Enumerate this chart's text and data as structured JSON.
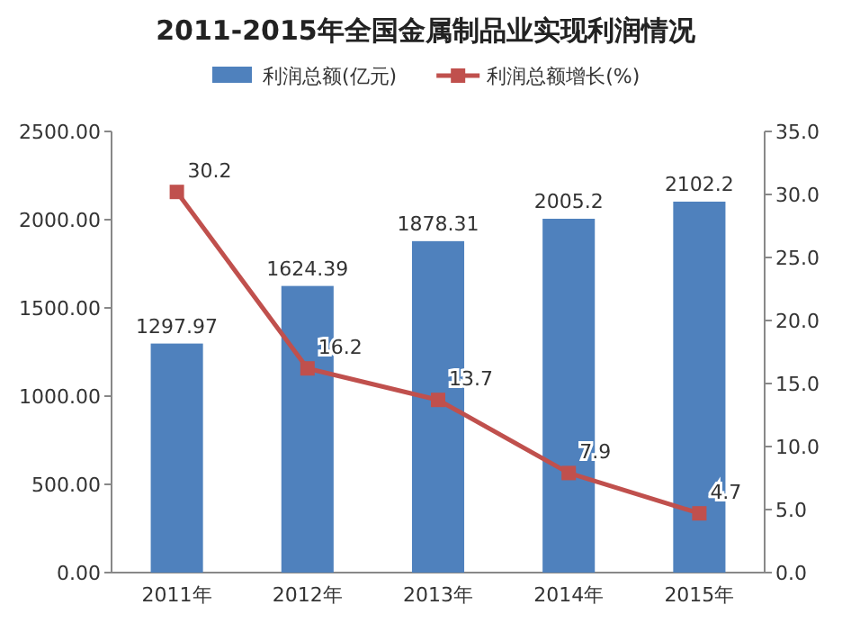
{
  "chart_data": {
    "type": "bar",
    "title": "2011-2015年全国金属制品业实现利润情况",
    "categories": [
      "2011年",
      "2012年",
      "2013年",
      "2014年",
      "2015年"
    ],
    "series": [
      {
        "name": "利润总额(亿元)",
        "color": "#4f81bd",
        "values": [
          1297.97,
          1624.39,
          1878.31,
          2005.2,
          2102.2
        ]
      },
      {
        "name": "利润总额增长(%)",
        "type": "line",
        "axis": "y2",
        "color": "#c0504d",
        "marker": "square",
        "values": [
          30.2,
          16.2,
          13.7,
          7.9,
          4.7
        ]
      }
    ],
    "data_labels": true,
    "legend": "top",
    "grid": false,
    "ylim": [
      0,
      2500
    ],
    "yticks": [
      {
        "value": 0,
        "label": "0.00"
      },
      {
        "value": 500,
        "label": "500.00"
      },
      {
        "value": 1000,
        "label": "1000.00"
      },
      {
        "value": 1500,
        "label": "1500.00"
      },
      {
        "value": 2000,
        "label": "2000.00"
      },
      {
        "value": 2500,
        "label": "2500.00"
      }
    ],
    "y2lim": [
      0,
      35
    ],
    "y2ticks": [
      {
        "value": 0,
        "label": "0.0"
      },
      {
        "value": 5,
        "label": "5.0"
      },
      {
        "value": 10,
        "label": "10.0"
      },
      {
        "value": 15,
        "label": "15.0"
      },
      {
        "value": 20,
        "label": "20.0"
      },
      {
        "value": 25,
        "label": "25.0"
      },
      {
        "value": 30,
        "label": "30.0"
      },
      {
        "value": 35,
        "label": "35.0"
      }
    ]
  }
}
